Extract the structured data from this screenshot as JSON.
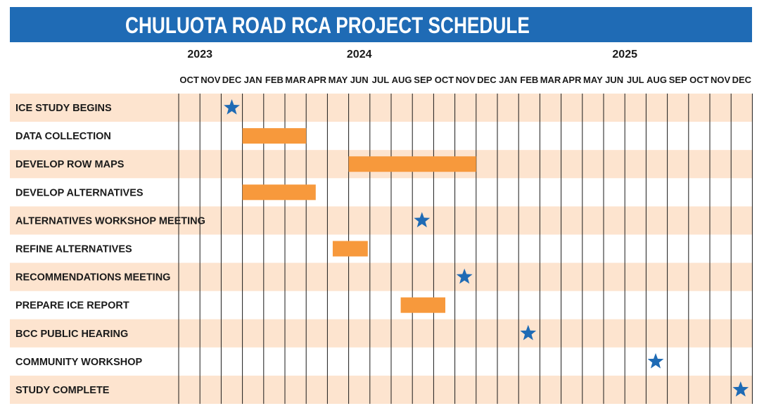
{
  "title": "CHULUOTA ROAD RCA PROJECT SCHEDULE",
  "colors": {
    "title_bg": "#1f6bb5",
    "row_band": "#fde4cf",
    "bar": "#f7993c",
    "milestone": "#1f6bb5",
    "grid": "#1a1a1a"
  },
  "chart_data": {
    "type": "gantt",
    "title": "CHULUOTA ROAD RCA PROJECT SCHEDULE",
    "years": [
      {
        "label": "2023",
        "month_index": 1
      },
      {
        "label": "2024",
        "month_index": 8.5
      },
      {
        "label": "2025",
        "month_index": 21
      }
    ],
    "months": [
      "OCT",
      "NOV",
      "DEC",
      "JAN",
      "FEB",
      "MAR",
      "APR",
      "MAY",
      "JUN",
      "JUL",
      "AUG",
      "SEP",
      "OCT",
      "NOV",
      "DEC",
      "JAN",
      "FEB",
      "MAR",
      "APR",
      "MAY",
      "JUN",
      "JUL",
      "AUG",
      "SEP",
      "OCT",
      "NOV",
      "DEC"
    ],
    "tasks": [
      {
        "name": "ICE STUDY BEGINS",
        "type": "milestone",
        "at": 2.5
      },
      {
        "name": "DATA COLLECTION",
        "type": "bar",
        "start": 3.0,
        "end": 6.0
      },
      {
        "name": "DEVELOP ROW MAPS",
        "type": "bar",
        "start": 8.0,
        "end": 14.0
      },
      {
        "name": "DEVELOP ALTERNATIVES",
        "type": "bar",
        "start": 3.0,
        "end": 6.45
      },
      {
        "name": "ALTERNATIVES WORKSHOP MEETING",
        "type": "milestone",
        "at": 11.45
      },
      {
        "name": "REFINE ALTERNATIVES",
        "type": "bar",
        "start": 7.25,
        "end": 8.9
      },
      {
        "name": "RECOMMENDATIONS MEETING",
        "type": "milestone",
        "at": 13.45
      },
      {
        "name": "PREPARE ICE REPORT",
        "type": "bar",
        "start": 10.45,
        "end": 12.55
      },
      {
        "name": "BCC PUBLIC HEARING",
        "type": "milestone",
        "at": 16.45
      },
      {
        "name": "COMMUNITY WORKSHOP",
        "type": "milestone",
        "at": 22.45
      },
      {
        "name": "STUDY COMPLETE",
        "type": "milestone",
        "at": 26.45
      }
    ]
  }
}
